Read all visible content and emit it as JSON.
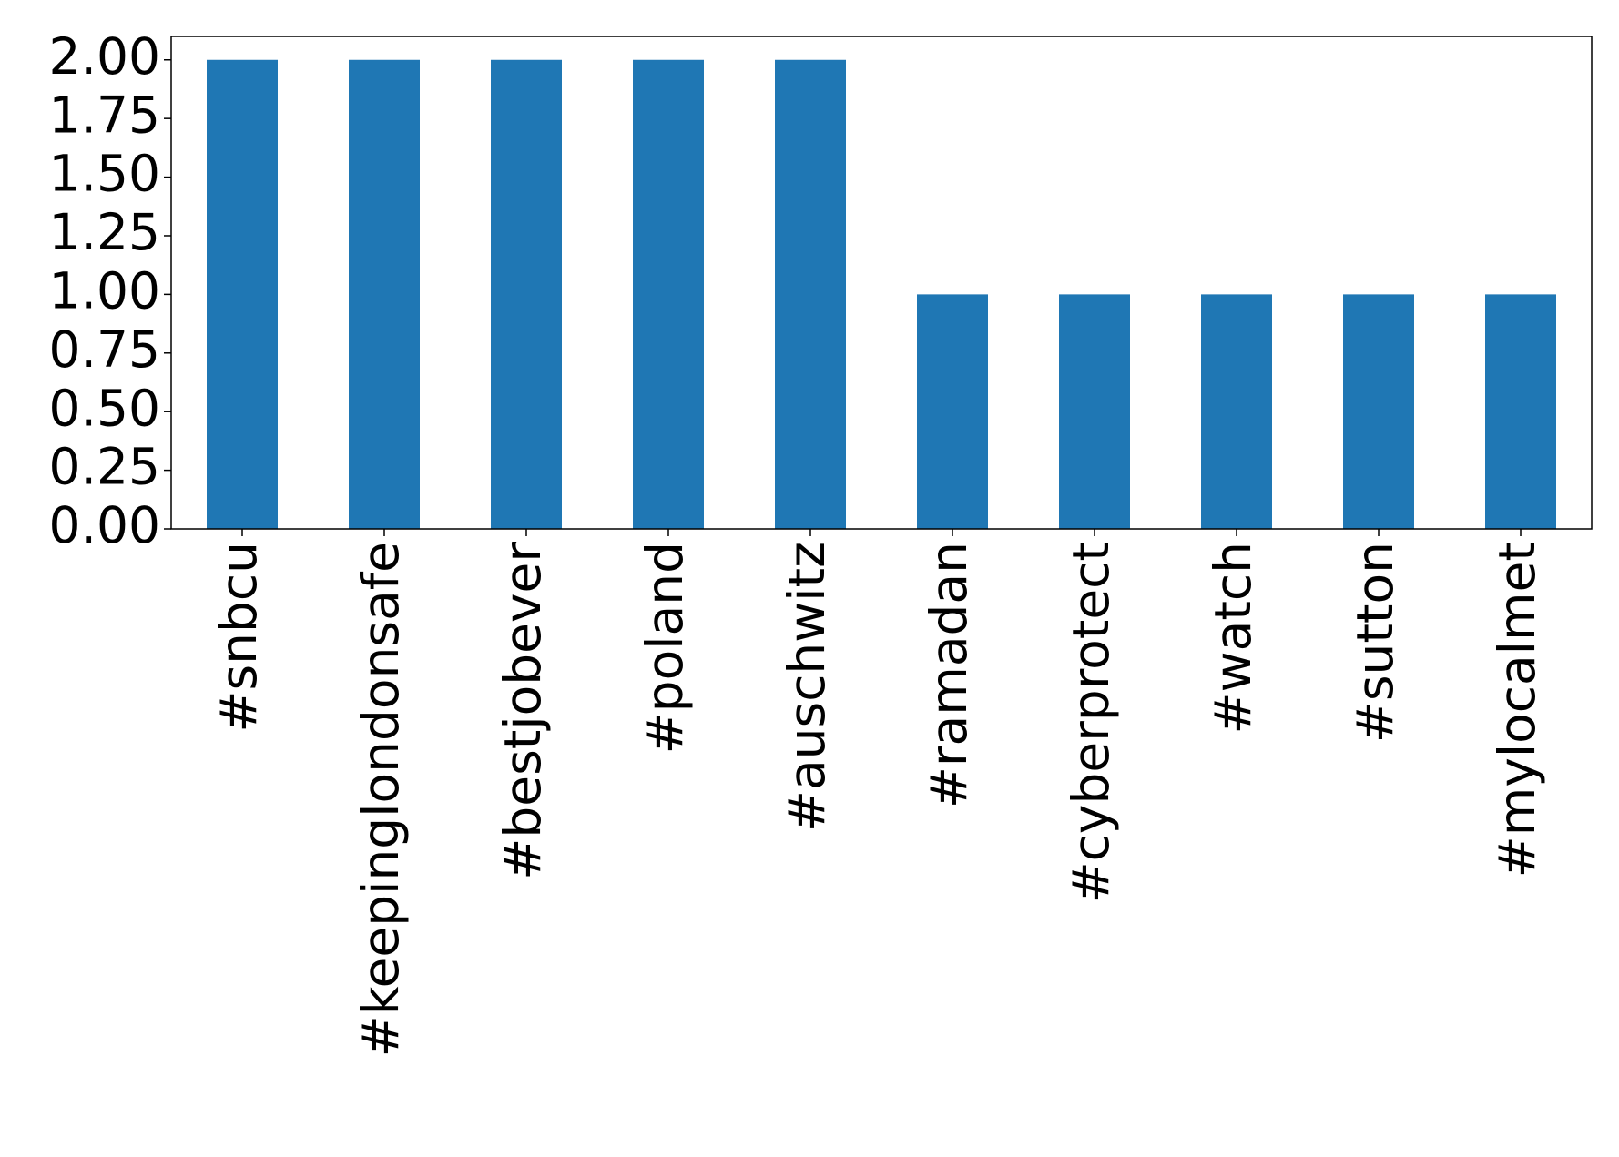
{
  "chart_data": {
    "type": "bar",
    "categories": [
      "#snbcu",
      "#keepinglondonsafe",
      "#bestjobever",
      "#poland",
      "#auschwitz",
      "#ramadan",
      "#cyberprotect",
      "#watch",
      "#sutton",
      "#mylocalmet"
    ],
    "values": [
      2,
      2,
      2,
      2,
      2,
      1,
      1,
      1,
      1,
      1
    ],
    "color": "#1f77b4",
    "ylim": [
      0,
      2.1
    ],
    "yticks": [
      {
        "value": 0,
        "label": "0.00"
      },
      {
        "value": 0.25,
        "label": "0.25"
      },
      {
        "value": 0.5,
        "label": "0.50"
      },
      {
        "value": 0.75,
        "label": "0.75"
      },
      {
        "value": 1,
        "label": "1.00"
      },
      {
        "value": 1.25,
        "label": "1.25"
      },
      {
        "value": 1.5,
        "label": "1.50"
      },
      {
        "value": 1.75,
        "label": "1.75"
      },
      {
        "value": 2,
        "label": "2.00"
      }
    ],
    "grid": false
  }
}
